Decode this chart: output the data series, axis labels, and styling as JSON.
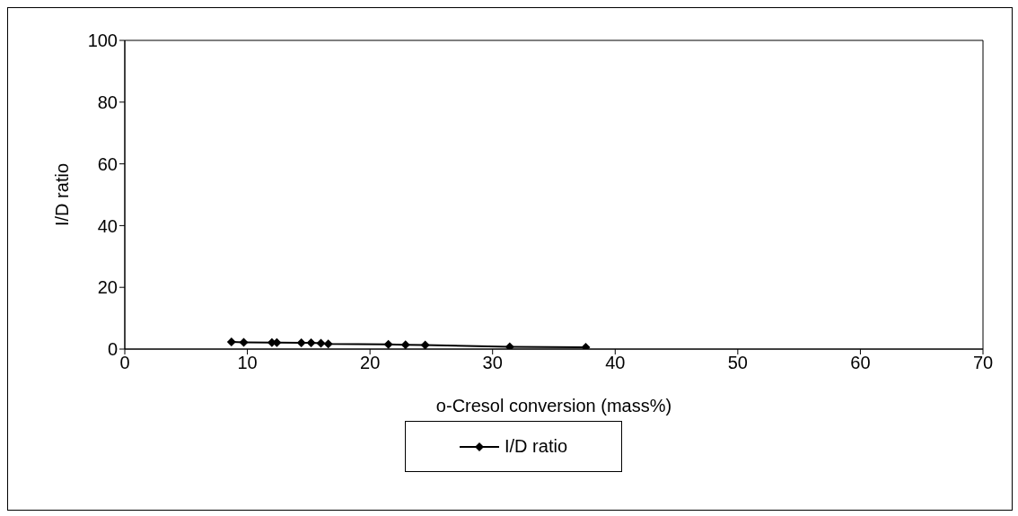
{
  "chart_data": {
    "type": "line",
    "xlabel": "o-Cresol conversion (mass%)",
    "ylabel": "I/D ratio",
    "x": [
      8.7,
      9.7,
      12.0,
      12.4,
      14.4,
      15.2,
      16.0,
      16.6,
      21.5,
      22.9,
      24.5,
      31.4,
      37.6
    ],
    "series": [
      {
        "name": "I/D ratio",
        "color": "#000000",
        "values": [
          2.3,
          2.2,
          2.1,
          2.1,
          2.0,
          2.0,
          1.9,
          1.7,
          1.5,
          1.4,
          1.3,
          0.7,
          0.6
        ]
      }
    ],
    "xlim": [
      0,
      70
    ],
    "xticks": [
      0,
      10,
      20,
      30,
      40,
      50,
      60,
      70
    ],
    "ylim": [
      0,
      100
    ],
    "yticks": [
      0,
      20,
      40,
      60,
      80,
      100
    ],
    "grid": false,
    "legend": "bottom",
    "marker": "diamond",
    "line_style": "solid"
  }
}
